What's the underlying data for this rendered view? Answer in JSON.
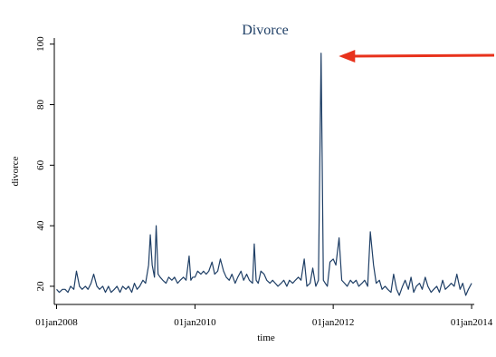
{
  "chart_data": {
    "type": "line",
    "title": "Divorce",
    "xlabel": "time",
    "ylabel": "divorce",
    "xlim": [
      "2007-12-20",
      "2014-01-15"
    ],
    "ylim": [
      14,
      102
    ],
    "y_ticks": [
      20,
      40,
      60,
      80,
      100
    ],
    "x_ticks": [
      {
        "date": "2008-01-01",
        "label": "01jan2008"
      },
      {
        "date": "2010-01-01",
        "label": "01jan2010"
      },
      {
        "date": "2012-01-01",
        "label": "01jan2012"
      },
      {
        "date": "2014-01-01",
        "label": "01jan2014"
      }
    ],
    "grid": false,
    "series": [
      {
        "color": "#1f3f66",
        "points": [
          [
            "2008-01-01",
            19
          ],
          [
            "2008-01-15",
            18
          ],
          [
            "2008-02-01",
            19
          ],
          [
            "2008-02-15",
            19
          ],
          [
            "2008-03-01",
            18
          ],
          [
            "2008-03-15",
            20
          ],
          [
            "2008-04-01",
            19
          ],
          [
            "2008-04-15",
            25
          ],
          [
            "2008-05-01",
            20
          ],
          [
            "2008-05-15",
            19
          ],
          [
            "2008-06-01",
            20
          ],
          [
            "2008-06-15",
            19
          ],
          [
            "2008-07-01",
            21
          ],
          [
            "2008-07-15",
            24
          ],
          [
            "2008-08-01",
            20
          ],
          [
            "2008-08-15",
            19
          ],
          [
            "2008-09-01",
            20
          ],
          [
            "2008-09-15",
            18
          ],
          [
            "2008-10-01",
            20
          ],
          [
            "2008-10-15",
            18
          ],
          [
            "2008-11-01",
            19
          ],
          [
            "2008-11-15",
            20
          ],
          [
            "2008-12-01",
            18
          ],
          [
            "2008-12-15",
            20
          ],
          [
            "2009-01-01",
            19
          ],
          [
            "2009-01-15",
            20
          ],
          [
            "2009-02-01",
            18
          ],
          [
            "2009-02-15",
            21
          ],
          [
            "2009-03-01",
            19
          ],
          [
            "2009-03-15",
            20
          ],
          [
            "2009-04-01",
            22
          ],
          [
            "2009-04-15",
            21
          ],
          [
            "2009-05-01",
            27
          ],
          [
            "2009-05-10",
            37
          ],
          [
            "2009-05-20",
            27
          ],
          [
            "2009-06-01",
            23
          ],
          [
            "2009-06-10",
            40
          ],
          [
            "2009-06-20",
            24
          ],
          [
            "2009-07-01",
            23
          ],
          [
            "2009-07-15",
            22
          ],
          [
            "2009-08-01",
            21
          ],
          [
            "2009-08-15",
            23
          ],
          [
            "2009-09-01",
            22
          ],
          [
            "2009-09-15",
            23
          ],
          [
            "2009-10-01",
            21
          ],
          [
            "2009-10-15",
            22
          ],
          [
            "2009-11-01",
            23
          ],
          [
            "2009-11-15",
            22
          ],
          [
            "2009-12-01",
            30
          ],
          [
            "2009-12-10",
            22
          ],
          [
            "2009-12-20",
            23
          ],
          [
            "2010-01-01",
            23
          ],
          [
            "2010-01-15",
            25
          ],
          [
            "2010-02-01",
            24
          ],
          [
            "2010-02-15",
            25
          ],
          [
            "2010-03-01",
            24
          ],
          [
            "2010-03-15",
            25
          ],
          [
            "2010-04-01",
            28
          ],
          [
            "2010-04-15",
            24
          ],
          [
            "2010-05-01",
            25
          ],
          [
            "2010-05-15",
            29
          ],
          [
            "2010-06-01",
            25
          ],
          [
            "2010-06-15",
            23
          ],
          [
            "2010-07-01",
            22
          ],
          [
            "2010-07-15",
            24
          ],
          [
            "2010-08-01",
            21
          ],
          [
            "2010-08-15",
            23
          ],
          [
            "2010-09-01",
            25
          ],
          [
            "2010-09-15",
            22
          ],
          [
            "2010-10-01",
            24
          ],
          [
            "2010-10-15",
            22
          ],
          [
            "2010-11-01",
            21
          ],
          [
            "2010-11-10",
            34
          ],
          [
            "2010-11-20",
            22
          ],
          [
            "2010-12-01",
            21
          ],
          [
            "2010-12-15",
            25
          ],
          [
            "2011-01-01",
            24
          ],
          [
            "2011-01-15",
            22
          ],
          [
            "2011-02-01",
            21
          ],
          [
            "2011-02-15",
            22
          ],
          [
            "2011-03-01",
            21
          ],
          [
            "2011-03-15",
            20
          ],
          [
            "2011-04-01",
            21
          ],
          [
            "2011-04-15",
            22
          ],
          [
            "2011-05-01",
            20
          ],
          [
            "2011-05-15",
            22
          ],
          [
            "2011-06-01",
            21
          ],
          [
            "2011-06-15",
            22
          ],
          [
            "2011-07-01",
            23
          ],
          [
            "2011-07-15",
            22
          ],
          [
            "2011-08-01",
            29
          ],
          [
            "2011-08-15",
            20
          ],
          [
            "2011-09-01",
            21
          ],
          [
            "2011-09-15",
            26
          ],
          [
            "2011-10-01",
            20
          ],
          [
            "2011-10-15",
            22
          ],
          [
            "2011-10-29",
            97
          ],
          [
            "2011-11-10",
            22
          ],
          [
            "2011-11-20",
            21
          ],
          [
            "2011-12-01",
            20
          ],
          [
            "2011-12-15",
            28
          ],
          [
            "2012-01-01",
            29
          ],
          [
            "2012-01-15",
            27
          ],
          [
            "2012-02-01",
            36
          ],
          [
            "2012-02-15",
            22
          ],
          [
            "2012-03-01",
            21
          ],
          [
            "2012-03-15",
            20
          ],
          [
            "2012-04-01",
            22
          ],
          [
            "2012-04-15",
            21
          ],
          [
            "2012-05-01",
            22
          ],
          [
            "2012-05-15",
            20
          ],
          [
            "2012-06-01",
            21
          ],
          [
            "2012-06-15",
            22
          ],
          [
            "2012-07-01",
            20
          ],
          [
            "2012-07-15",
            38
          ],
          [
            "2012-08-01",
            27
          ],
          [
            "2012-08-15",
            21
          ],
          [
            "2012-09-01",
            22
          ],
          [
            "2012-09-15",
            19
          ],
          [
            "2012-10-01",
            20
          ],
          [
            "2012-10-15",
            19
          ],
          [
            "2012-11-01",
            18
          ],
          [
            "2012-11-15",
            24
          ],
          [
            "2012-12-01",
            19
          ],
          [
            "2012-12-15",
            17
          ],
          [
            "2013-01-01",
            20
          ],
          [
            "2013-01-15",
            22
          ],
          [
            "2013-02-01",
            19
          ],
          [
            "2013-02-15",
            23
          ],
          [
            "2013-03-01",
            18
          ],
          [
            "2013-03-15",
            20
          ],
          [
            "2013-04-01",
            21
          ],
          [
            "2013-04-15",
            19
          ],
          [
            "2013-05-01",
            23
          ],
          [
            "2013-05-15",
            20
          ],
          [
            "2013-06-01",
            18
          ],
          [
            "2013-06-15",
            19
          ],
          [
            "2013-07-01",
            20
          ],
          [
            "2013-07-15",
            18
          ],
          [
            "2013-08-01",
            22
          ],
          [
            "2013-08-15",
            19
          ],
          [
            "2013-09-01",
            20
          ],
          [
            "2013-09-15",
            21
          ],
          [
            "2013-10-01",
            20
          ],
          [
            "2013-10-15",
            24
          ],
          [
            "2013-11-01",
            19
          ],
          [
            "2013-11-15",
            21
          ],
          [
            "2013-12-01",
            17
          ],
          [
            "2013-12-15",
            19
          ],
          [
            "2014-01-01",
            21
          ]
        ]
      }
    ],
    "annotations": [
      {
        "type": "arrow",
        "color": "#e8321c",
        "points_to": [
          "2011-11-15",
          96
        ]
      }
    ]
  }
}
